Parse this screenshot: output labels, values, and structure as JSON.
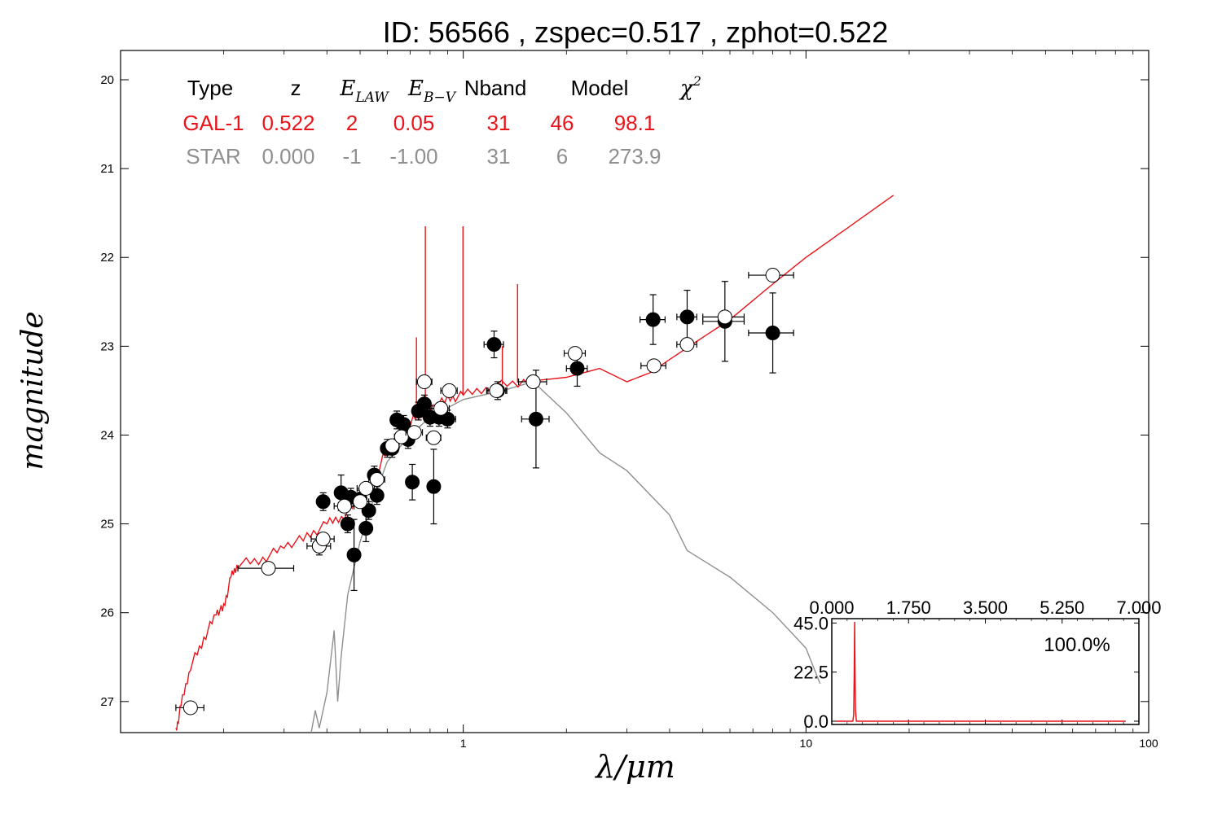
{
  "title": "ID:  56566 , zspec=0.517 , zphot=0.522",
  "colors": {
    "model": "#e8141a",
    "star": "#8f8f8f",
    "point": "#000000"
  },
  "chart_data": {
    "type": "scatter",
    "xlabel": "λ/μm",
    "ylabel": "magnitude",
    "xscale": "log",
    "xlim": [
      0.1,
      100
    ],
    "ylim": [
      27.35,
      19.67
    ],
    "yinverted": true,
    "xticks": [
      {
        "v": 1,
        "label": "1"
      },
      {
        "v": 10,
        "label": "10"
      },
      {
        "v": 100,
        "label": "100"
      }
    ],
    "yticks": [
      20,
      21,
      22,
      23,
      24,
      25,
      26,
      27
    ],
    "fit_table": {
      "headers": [
        "Type",
        "z",
        "E_LAW",
        "E_B−V",
        "Nband",
        "Model",
        "χ2"
      ],
      "rows": [
        {
          "name": "GAL-1",
          "values": [
            "GAL-1",
            "0.522",
            "2",
            "0.05",
            "31",
            "46",
            "98.1"
          ]
        },
        {
          "name": "STAR",
          "values": [
            "STAR",
            "0.000",
            "-1",
            "-1.00",
            "31",
            "6",
            "273.9"
          ]
        }
      ]
    },
    "model_curve_gal": [
      [
        0.145,
        27.35
      ],
      [
        0.15,
        27.05
      ],
      [
        0.16,
        26.6
      ],
      [
        0.175,
        26.3
      ],
      [
        0.19,
        26.0
      ],
      [
        0.2,
        25.95
      ],
      [
        0.21,
        25.6
      ],
      [
        0.22,
        25.45
      ],
      [
        0.26,
        25.4
      ],
      [
        0.3,
        25.25
      ],
      [
        0.35,
        25.15
      ],
      [
        0.4,
        25.0
      ],
      [
        0.45,
        24.9
      ],
      [
        0.5,
        24.7
      ],
      [
        0.55,
        24.5
      ],
      [
        0.6,
        24.15
      ],
      [
        0.65,
        24.0
      ],
      [
        0.7,
        23.85
      ],
      [
        0.75,
        23.75
      ],
      [
        0.8,
        23.7
      ],
      [
        0.9,
        23.6
      ],
      [
        1.0,
        23.55
      ],
      [
        1.2,
        23.45
      ],
      [
        1.5,
        23.4
      ],
      [
        2.0,
        23.35
      ],
      [
        2.5,
        23.25
      ],
      [
        3.0,
        23.4
      ],
      [
        3.5,
        23.3
      ],
      [
        4.0,
        23.15
      ],
      [
        5.0,
        22.9
      ],
      [
        6.0,
        22.7
      ],
      [
        8.0,
        22.3
      ],
      [
        10.0,
        22.0
      ],
      [
        14.0,
        21.6
      ],
      [
        18.0,
        21.3
      ]
    ],
    "emission_lines": [
      {
        "x": 0.775,
        "top": 21.65
      },
      {
        "x": 0.998,
        "top": 21.65
      },
      {
        "x": 1.44,
        "top": 22.3
      },
      {
        "x": 0.73,
        "top": 22.9
      },
      {
        "x": 1.3,
        "top": 23.0
      }
    ],
    "star_curve": [
      [
        0.36,
        27.35
      ],
      [
        0.37,
        27.1
      ],
      [
        0.38,
        27.3
      ],
      [
        0.4,
        26.9
      ],
      [
        0.42,
        26.2
      ],
      [
        0.43,
        27.0
      ],
      [
        0.44,
        26.5
      ],
      [
        0.46,
        25.8
      ],
      [
        0.5,
        25.2
      ],
      [
        0.55,
        24.7
      ],
      [
        0.6,
        24.3
      ],
      [
        0.7,
        24.0
      ],
      [
        0.8,
        23.8
      ],
      [
        1.0,
        23.6
      ],
      [
        1.3,
        23.5
      ],
      [
        1.6,
        23.4
      ],
      [
        2.0,
        23.75
      ],
      [
        2.5,
        24.2
      ],
      [
        3.0,
        24.4
      ],
      [
        4.0,
        24.9
      ],
      [
        4.5,
        25.3
      ],
      [
        6.0,
        25.6
      ],
      [
        8.0,
        26.0
      ],
      [
        10.0,
        26.4
      ],
      [
        11.0,
        26.8
      ]
    ],
    "series": [
      {
        "name": "filled",
        "points": [
          [
            0.38,
            25.25,
            0.005,
            0.1
          ],
          [
            0.39,
            24.75,
            0.005,
            0.1
          ],
          [
            0.44,
            24.65,
            0.005,
            0.2
          ],
          [
            0.46,
            25.0,
            0.005,
            0.1
          ],
          [
            0.47,
            24.7,
            0.01,
            0.1
          ],
          [
            0.48,
            25.35,
            0.005,
            0.4
          ],
          [
            0.5,
            24.72,
            0.01,
            0.1
          ],
          [
            0.52,
            25.05,
            0.005,
            0.15
          ],
          [
            0.53,
            24.85,
            0.01,
            0.1
          ],
          [
            0.55,
            24.45,
            0.01,
            0.1
          ],
          [
            0.56,
            24.68,
            0.01,
            0.1
          ],
          [
            0.6,
            24.15,
            0.01,
            0.1
          ],
          [
            0.62,
            24.15,
            0.01,
            0.1
          ],
          [
            0.64,
            23.83,
            0.01,
            0.1
          ],
          [
            0.67,
            23.88,
            0.01,
            0.1
          ],
          [
            0.69,
            24.05,
            0.01,
            0.1
          ],
          [
            0.71,
            24.53,
            0.01,
            0.2
          ],
          [
            0.74,
            23.73,
            0.01,
            0.1
          ],
          [
            0.77,
            23.65,
            0.01,
            0.1
          ],
          [
            0.8,
            23.8,
            0.02,
            0.1
          ],
          [
            0.82,
            24.58,
            0.02,
            0.42
          ],
          [
            0.85,
            23.8,
            0.03,
            0.1
          ],
          [
            0.9,
            23.82,
            0.05,
            0.1
          ],
          [
            1.23,
            22.98,
            0.08,
            0.15
          ],
          [
            1.26,
            23.5,
            0.08,
            0.1
          ],
          [
            1.63,
            23.82,
            0.15,
            0.55
          ],
          [
            2.15,
            23.25,
            0.15,
            0.2
          ],
          [
            3.58,
            22.7,
            0.3,
            0.28
          ],
          [
            4.5,
            22.67,
            0.3,
            0.3
          ],
          [
            5.8,
            22.72,
            0.8,
            0.45
          ],
          [
            8.0,
            22.85,
            1.2,
            0.45
          ]
        ]
      },
      {
        "name": "open",
        "points": [
          [
            0.16,
            27.07,
            0.015,
            0.05
          ],
          [
            0.27,
            25.5,
            0.05,
            0.03
          ],
          [
            0.38,
            25.25,
            0.03,
            0.03
          ],
          [
            0.39,
            25.17,
            0.03,
            0.03
          ],
          [
            0.45,
            24.8,
            0.03,
            0.03
          ],
          [
            0.5,
            24.75,
            0.03,
            0.03
          ],
          [
            0.52,
            24.6,
            0.03,
            0.03
          ],
          [
            0.56,
            24.5,
            0.03,
            0.03
          ],
          [
            0.62,
            24.12,
            0.03,
            0.03
          ],
          [
            0.66,
            24.02,
            0.03,
            0.03
          ],
          [
            0.72,
            23.97,
            0.04,
            0.04
          ],
          [
            0.77,
            23.4,
            0.04,
            0.03
          ],
          [
            0.82,
            24.03,
            0.04,
            0.04
          ],
          [
            0.86,
            23.7,
            0.05,
            0.03
          ],
          [
            0.91,
            23.5,
            0.05,
            0.03
          ],
          [
            1.25,
            23.5,
            0.08,
            0.03
          ],
          [
            1.6,
            23.4,
            0.15,
            0.03
          ],
          [
            2.12,
            23.08,
            0.15,
            0.03
          ],
          [
            3.6,
            23.22,
            0.3,
            0.03
          ],
          [
            4.5,
            22.98,
            0.3,
            0.05
          ],
          [
            5.8,
            22.67,
            0.8,
            0.05
          ],
          [
            8.0,
            22.2,
            1.2,
            0.05
          ]
        ]
      }
    ],
    "inset": {
      "type": "line",
      "xlim": [
        0,
        7
      ],
      "ylim": [
        -1.5,
        47
      ],
      "xticks": [
        "0.000",
        "1.750",
        "3.500",
        "5.250",
        "7.000"
      ],
      "yticks": [
        "0.0",
        "22.5",
        "45.0"
      ],
      "annotation": "100.0%",
      "pdf": [
        [
          0.1,
          0
        ],
        [
          0.48,
          0
        ],
        [
          0.5,
          3
        ],
        [
          0.51,
          20
        ],
        [
          0.522,
          45.5
        ],
        [
          0.53,
          25
        ],
        [
          0.54,
          5
        ],
        [
          0.56,
          0
        ],
        [
          6.7,
          0
        ]
      ]
    }
  }
}
